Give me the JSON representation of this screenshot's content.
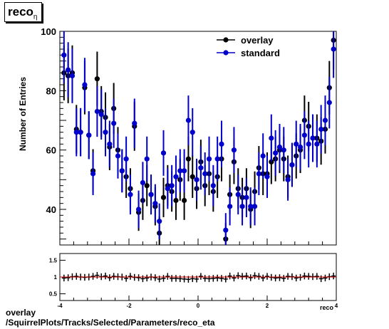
{
  "title": {
    "main": "reco",
    "sub": "η"
  },
  "footer": {
    "line1": "overlay",
    "line2": "/SquirrelPlots/Tracks/Selected/Parameters/reco_eta"
  },
  "colors": {
    "overlay": "#000000",
    "standard": "#0000cc",
    "ratio_line": "#cc0000"
  },
  "chart_data": [
    {
      "type": "scatter",
      "ylabel": "Number of Entries",
      "xlim": [
        -4,
        4
      ],
      "ylim": [
        28,
        100
      ],
      "x_ticks": [],
      "y_ticks": [
        40,
        60,
        80,
        100
      ],
      "legend_position": "top-right",
      "x": [
        -3.88,
        -3.76,
        -3.64,
        -3.52,
        -3.4,
        -3.28,
        -3.16,
        -3.04,
        -2.92,
        -2.8,
        -2.68,
        -2.56,
        -2.44,
        -2.32,
        -2.2,
        -2.08,
        -1.96,
        -1.84,
        -1.72,
        -1.6,
        -1.48,
        -1.36,
        -1.24,
        -1.12,
        -1.0,
        -0.88,
        -0.76,
        -0.64,
        -0.52,
        -0.4,
        -0.28,
        -0.16,
        -0.04,
        0.08,
        0.2,
        0.32,
        0.44,
        0.56,
        0.68,
        0.8,
        0.92,
        1.04,
        1.16,
        1.28,
        1.4,
        1.52,
        1.64,
        1.76,
        1.88,
        2.0,
        2.12,
        2.24,
        2.36,
        2.48,
        2.6,
        2.72,
        2.84,
        2.96,
        3.08,
        3.2,
        3.32,
        3.44,
        3.56,
        3.68,
        3.8,
        3.92
      ],
      "series": [
        {
          "name": "overlay",
          "values": [
            86,
            85,
            86,
            67,
            66,
            81,
            65,
            53,
            84,
            73,
            71,
            61,
            74,
            60,
            53,
            51,
            47,
            68,
            39,
            43,
            48,
            45,
            41,
            32,
            44,
            48,
            46,
            43,
            50,
            43,
            57,
            51,
            47,
            56,
            48,
            52,
            46,
            51,
            57,
            30,
            45,
            56,
            47,
            44,
            47,
            40,
            46,
            54,
            52,
            52,
            56,
            57,
            60,
            57,
            51,
            55,
            58,
            60,
            70,
            68,
            64,
            64,
            63,
            67,
            81,
            97
          ]
        },
        {
          "name": "standard",
          "values": [
            92,
            87,
            85,
            66,
            66,
            82,
            65,
            52,
            73,
            72,
            66,
            62,
            69,
            58,
            53,
            57,
            45,
            69,
            40,
            49,
            57,
            45,
            42,
            36,
            59,
            47,
            48,
            51,
            53,
            53,
            70,
            66,
            50,
            54,
            52,
            57,
            48,
            57,
            62,
            33,
            41,
            60,
            45,
            41,
            44,
            41,
            41,
            52,
            58,
            51,
            64,
            59,
            61,
            60,
            50,
            55,
            62,
            61,
            65,
            62,
            64,
            62,
            67,
            70,
            76,
            94
          ]
        }
      ]
    },
    {
      "type": "scatter",
      "xlabel": "reco",
      "xlim": [
        -4,
        4
      ],
      "ylim": [
        0.3,
        1.7
      ],
      "x_ticks": [
        -4,
        -2,
        0,
        2,
        4
      ],
      "y_ticks": [
        0.5,
        1,
        1.5
      ],
      "reference_line": 1,
      "values": [
        0.97,
        0.98,
        1.01,
        1.02,
        1.0,
        0.99,
        1.0,
        1.02,
        1.05,
        1.01,
        1.03,
        0.98,
        1.02,
        1.01,
        1.0,
        0.96,
        1.02,
        0.99,
        0.98,
        0.95,
        0.97,
        1.0,
        0.98,
        0.94,
        0.96,
        1.02,
        0.96,
        0.96,
        0.95,
        0.94,
        0.93,
        0.95,
        0.94,
        1.02,
        0.96,
        0.95,
        0.96,
        0.97,
        0.96,
        0.94,
        1.03,
        0.97,
        1.04,
        1.02,
        1.03,
        0.98,
        1.04,
        1.02,
        0.97,
        1.02,
        0.99,
        0.97,
        0.98,
        0.96,
        1.02,
        1.01,
        0.97,
        0.99,
        1.03,
        1.02,
        1.01,
        1.02,
        0.95,
        0.97,
        1.01,
        1.03
      ]
    }
  ]
}
